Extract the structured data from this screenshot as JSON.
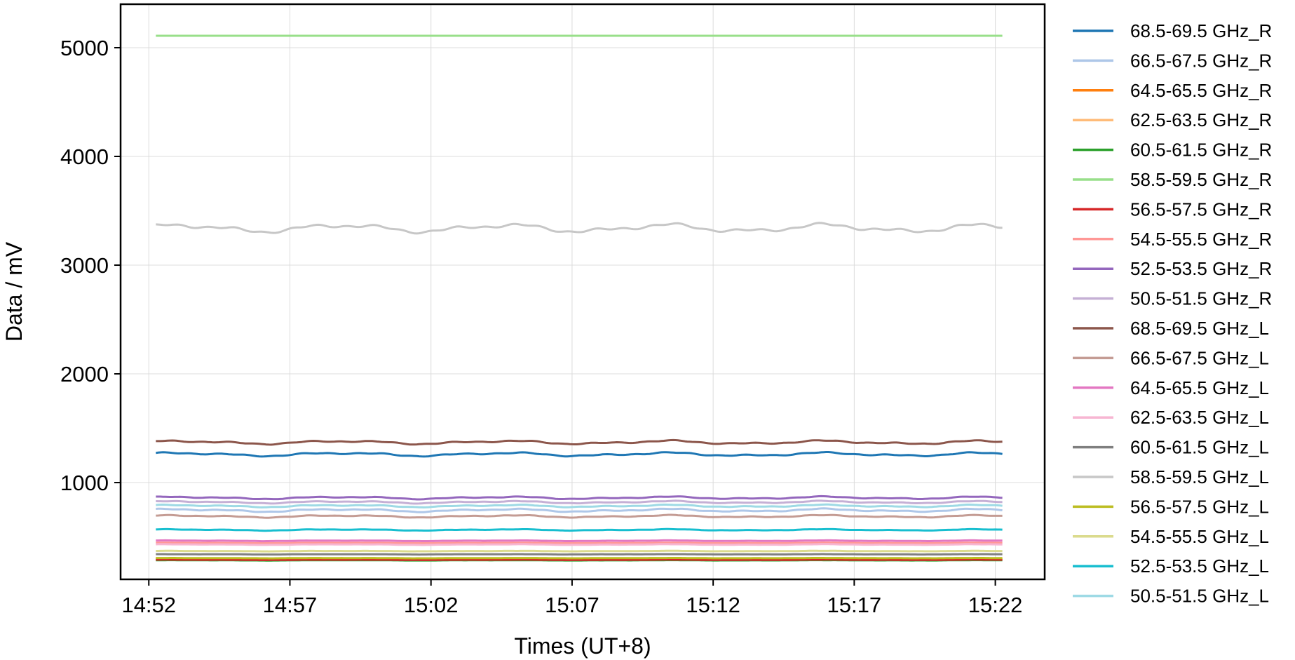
{
  "chart_data": {
    "type": "line",
    "title": "",
    "xlabel": "Times (UT+8)",
    "ylabel": "Data / mV",
    "x_ticks": [
      "14:52",
      "14:57",
      "15:02",
      "15:07",
      "15:12",
      "15:17",
      "15:22"
    ],
    "x_range": [
      "14:51",
      "15:23:45"
    ],
    "y_ticks": [
      1000,
      2000,
      3000,
      4000,
      5000
    ],
    "ylim": [
      110,
      5400
    ],
    "grid": true,
    "legend_position": "outside-right",
    "series": [
      {
        "name": "68.5-69.5 GHz_R",
        "color": "#1f77b4",
        "base": 1260,
        "amp": 22
      },
      {
        "name": "66.5-67.5 GHz_R",
        "color": "#aec7e8",
        "base": 745,
        "amp": 18
      },
      {
        "name": "64.5-65.5 GHz_R",
        "color": "#ff7f0e",
        "base": 295,
        "amp": 2
      },
      {
        "name": "62.5-63.5 GHz_R",
        "color": "#ffbb78",
        "base": 300,
        "amp": 2
      },
      {
        "name": "60.5-61.5 GHz_R",
        "color": "#2ca02c",
        "base": 285,
        "amp": 2
      },
      {
        "name": "58.5-59.5 GHz_R",
        "color": "#98df8a",
        "base": 5110,
        "amp": 0
      },
      {
        "name": "56.5-57.5 GHz_R",
        "color": "#d62728",
        "base": 290,
        "amp": 2
      },
      {
        "name": "54.5-55.5 GHz_R",
        "color": "#ff9896",
        "base": 445,
        "amp": 3
      },
      {
        "name": "52.5-53.5 GHz_R",
        "color": "#9467bd",
        "base": 860,
        "amp": 15
      },
      {
        "name": "50.5-51.5 GHz_R",
        "color": "#c5b0d5",
        "base": 820,
        "amp": 14
      },
      {
        "name": "68.5-69.5 GHz_L",
        "color": "#8c564b",
        "base": 1370,
        "amp": 22
      },
      {
        "name": "66.5-67.5 GHz_L",
        "color": "#c49c94",
        "base": 690,
        "amp": 14
      },
      {
        "name": "64.5-65.5 GHz_L",
        "color": "#e377c2",
        "base": 465,
        "amp": 4
      },
      {
        "name": "62.5-63.5 GHz_L",
        "color": "#f7b6d2",
        "base": 430,
        "amp": 4
      },
      {
        "name": "60.5-61.5 GHz_L",
        "color": "#7f7f7f",
        "base": 340,
        "amp": 2
      },
      {
        "name": "58.5-59.5 GHz_L",
        "color": "#c7c7c7",
        "base": 3340,
        "amp": 50
      },
      {
        "name": "56.5-57.5 GHz_L",
        "color": "#bcbd22",
        "base": 305,
        "amp": 2
      },
      {
        "name": "54.5-55.5 GHz_L",
        "color": "#dbdb8d",
        "base": 370,
        "amp": 3
      },
      {
        "name": "52.5-53.5 GHz_L",
        "color": "#17becf",
        "base": 565,
        "amp": 8
      },
      {
        "name": "50.5-51.5 GHz_L",
        "color": "#9edae5",
        "base": 785,
        "amp": 14
      }
    ]
  }
}
